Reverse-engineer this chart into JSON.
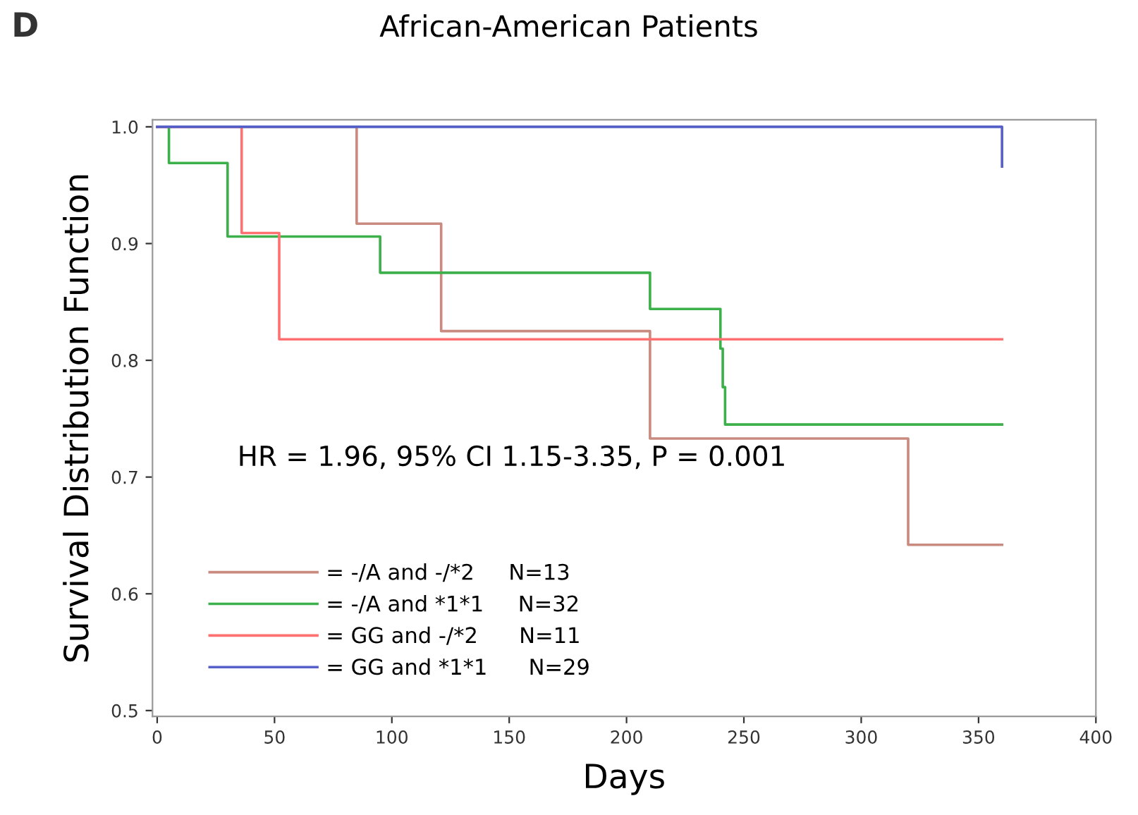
{
  "chart_data": {
    "type": "step",
    "title": "African-American Patients",
    "xlabel": "Days",
    "ylabel": "Survival Distribution Function",
    "annotations": [
      "D",
      "HR = 1.96, 95% CI 1.15-3.35, P = 0.001"
    ],
    "series": [
      {
        "name": "= -/A and -/*2     N=13",
        "color": "#c98a80",
        "x": [
          0,
          85,
          121,
          210,
          320,
          360
        ],
        "values": [
          1.0,
          0.917,
          0.825,
          0.733,
          0.642,
          0.642
        ]
      },
      {
        "name": "= -/A and *1*1     N=32",
        "color": "#3cb04a",
        "x": [
          0,
          5,
          30,
          95,
          210,
          240,
          241,
          242,
          360
        ],
        "values": [
          1.0,
          0.969,
          0.906,
          0.875,
          0.844,
          0.81,
          0.777,
          0.745,
          0.745
        ]
      },
      {
        "name": "= GG and -/*2      N=11",
        "color": "#ff7070",
        "x": [
          0,
          36,
          52,
          360
        ],
        "values": [
          1.0,
          0.909,
          0.818,
          0.818
        ]
      },
      {
        "name": "= GG and *1*1      N=29",
        "color": "#5560c8",
        "x": [
          0,
          360,
          360
        ],
        "values": [
          1.0,
          1.0,
          0.966
        ]
      }
    ],
    "xlim": [
      -2,
      400
    ],
    "ylim": [
      0.495,
      1.006
    ],
    "xticks": [
      0,
      50,
      100,
      150,
      200,
      250,
      300,
      350,
      400
    ],
    "yticks": [
      0.5,
      0.6,
      0.7,
      0.8,
      0.9,
      {
        "value": 1.0,
        "label": "1.0"
      }
    ],
    "grid": false,
    "legend": "bottom left",
    "line_style": "solid",
    "marker": "none"
  }
}
